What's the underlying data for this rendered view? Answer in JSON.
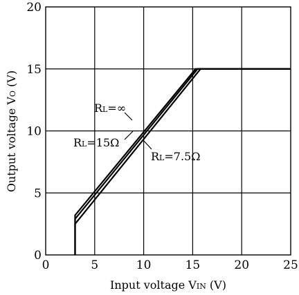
{
  "chart_data": {
    "type": "line",
    "title": "",
    "xlabel": "Input voltage V",
    "xlabel_sub": "IN",
    "xlabel_unit": " (V)",
    "ylabel": "Output voltage V",
    "ylabel_sub": "O",
    "ylabel_unit": " (V)",
    "xlim": [
      0,
      25
    ],
    "ylim": [
      0,
      20
    ],
    "xticks": [
      "0",
      "5",
      "10",
      "15",
      "20",
      "25"
    ],
    "yticks": [
      "0",
      "5",
      "10",
      "15",
      "20"
    ],
    "grid": true,
    "series": [
      {
        "name": "R_L=∞",
        "points": [
          [
            3,
            0
          ],
          [
            3,
            3.2
          ],
          [
            15.3,
            15
          ],
          [
            25,
            15
          ]
        ]
      },
      {
        "name": "R_L=15Ω",
        "points": [
          [
            3,
            0
          ],
          [
            3,
            2.9
          ],
          [
            15.5,
            15
          ],
          [
            25,
            15
          ]
        ]
      },
      {
        "name": "R_L=7.5Ω",
        "points": [
          [
            3,
            0
          ],
          [
            3,
            2.5
          ],
          [
            15.8,
            15
          ],
          [
            25,
            15
          ]
        ]
      }
    ],
    "annotations": [
      {
        "label": "R",
        "sub": "L",
        "rest": "=∞",
        "series": "R_L=∞"
      },
      {
        "label": "R",
        "sub": "L",
        "rest": "=15Ω",
        "series": "R_L=15Ω"
      },
      {
        "label": "R",
        "sub": "L",
        "rest": "=7.5Ω",
        "series": "R_L=7.5Ω"
      }
    ]
  }
}
